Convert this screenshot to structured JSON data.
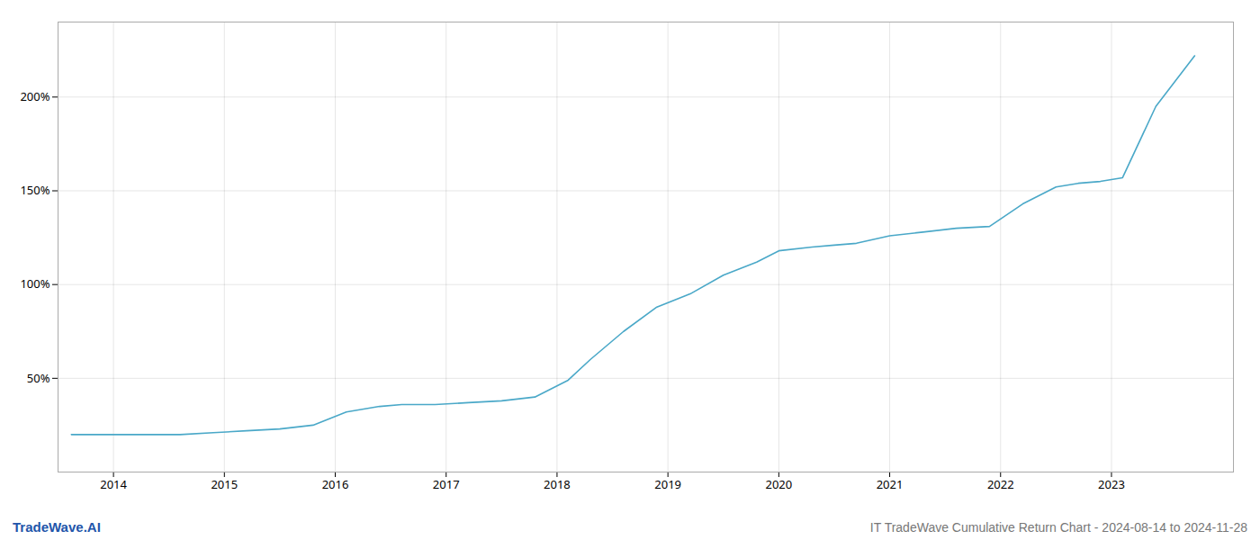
{
  "chart_data": {
    "type": "line",
    "title": "IT TradeWave Cumulative Return Chart - 2024-08-14 to 2024-11-28",
    "annotations": [
      "TradeWave.AI"
    ],
    "x": [
      2013.62,
      2014.0,
      2014.3,
      2014.6,
      2014.9,
      2015.2,
      2015.5,
      2015.8,
      2016.1,
      2016.4,
      2016.6,
      2016.9,
      2017.2,
      2017.5,
      2017.8,
      2018.1,
      2018.3,
      2018.6,
      2018.9,
      2019.2,
      2019.5,
      2019.8,
      2020.0,
      2020.3,
      2020.5,
      2020.7,
      2021.0,
      2021.3,
      2021.6,
      2021.9,
      2022.2,
      2022.5,
      2022.7,
      2022.9,
      2023.1,
      2023.4,
      2023.75
    ],
    "values": [
      20,
      20,
      20,
      20,
      21,
      22,
      23,
      25,
      32,
      35,
      36,
      36,
      37,
      38,
      40,
      49,
      60,
      75,
      88,
      95,
      105,
      112,
      118,
      120,
      121,
      122,
      126,
      128,
      130,
      131,
      143,
      152,
      154,
      155,
      157,
      195,
      222
    ],
    "color": "#4aa8c8",
    "xlim": [
      2013.5,
      2024.1
    ],
    "xticks": [
      2014,
      2015,
      2016,
      2017,
      2018,
      2019,
      2020,
      2021,
      2022,
      2023
    ],
    "ylim": [
      0,
      240
    ],
    "yticks": [
      {
        "value": 50,
        "label": "50%"
      },
      {
        "value": 100,
        "label": "100%"
      },
      {
        "value": 150,
        "label": "150%"
      },
      {
        "value": 200,
        "label": "200%"
      }
    ],
    "grid": true
  }
}
